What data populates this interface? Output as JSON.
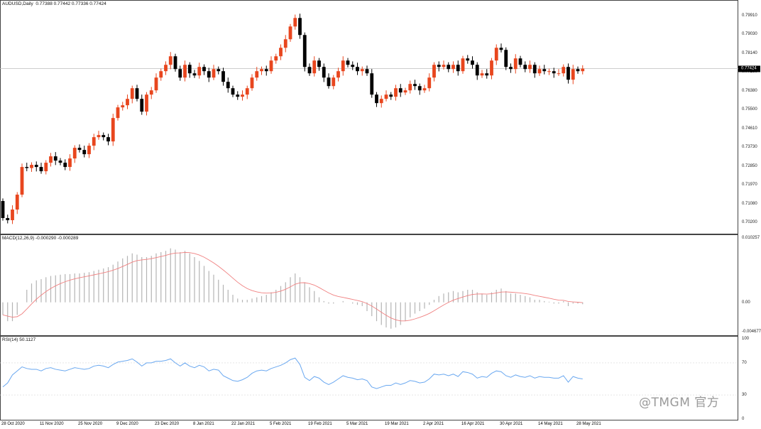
{
  "chart_header": {
    "symbol_label": "AUDUSD,Daily",
    "ohlc": "0.77388 0.77442 0.77336 0.77424"
  },
  "colors": {
    "bull": "#e8461e",
    "bear": "#000000",
    "macd_hist": "#b4b4b4",
    "macd_signal": "#f08080",
    "rsi_line": "#6aa8f0",
    "price_line": "#bcbcbc"
  },
  "price_axis": {
    "ticks": [
      "0.79910",
      "0.79030",
      "0.78140",
      "0.77260",
      "0.76380",
      "0.75500",
      "0.74610",
      "0.73730",
      "0.72850",
      "0.71970",
      "0.71080",
      "0.70200"
    ],
    "current_price": "0.77424"
  },
  "macd_panel": {
    "label": "MACD(12,26,9) -0.000290 -0.000289",
    "ticks": [
      "0.010257",
      "0.00",
      "-0.004677"
    ]
  },
  "rsi_panel": {
    "label": "RSI(14) 50.1127",
    "ticks": [
      "100",
      "70",
      "30",
      "0"
    ]
  },
  "x_axis_labels": [
    "28 Oct 2020",
    "11 Nov 2020",
    "25 Nov 2020",
    "9 Dec 2020",
    "23 Dec 2020",
    "8 Jan 2021",
    "22 Jan 2021",
    "5 Feb 2021",
    "19 Feb 2021",
    "5 Mar 2021",
    "19 Mar 2021",
    "2 Apr 2021",
    "16 Apr 2021",
    "30 Apr 2021",
    "14 May 2021",
    "28 May 2021"
  ],
  "watermark": "@TMGM 官方",
  "chart_data": {
    "type": "candlestick",
    "symbol": "AUDUSD",
    "timeframe": "Daily",
    "close": [
      0.704,
      0.703,
      0.708,
      0.715,
      0.728,
      0.7275,
      0.729,
      0.728,
      0.726,
      0.73,
      0.733,
      0.731,
      0.73,
      0.728,
      0.732,
      0.737,
      0.736,
      0.734,
      0.738,
      0.742,
      0.743,
      0.742,
      0.74,
      0.751,
      0.756,
      0.757,
      0.76,
      0.765,
      0.76,
      0.754,
      0.762,
      0.764,
      0.77,
      0.773,
      0.776,
      0.78,
      0.774,
      0.77,
      0.776,
      0.772,
      0.771,
      0.775,
      0.773,
      0.77,
      0.774,
      0.773,
      0.768,
      0.765,
      0.762,
      0.761,
      0.762,
      0.765,
      0.77,
      0.773,
      0.774,
      0.773,
      0.778,
      0.78,
      0.784,
      0.788,
      0.794,
      0.798,
      0.79,
      0.775,
      0.772,
      0.778,
      0.775,
      0.77,
      0.766,
      0.77,
      0.773,
      0.778,
      0.776,
      0.775,
      0.773,
      0.774,
      0.772,
      0.762,
      0.758,
      0.76,
      0.762,
      0.761,
      0.765,
      0.763,
      0.764,
      0.767,
      0.766,
      0.764,
      0.765,
      0.77,
      0.776,
      0.775,
      0.776,
      0.774,
      0.776,
      0.773,
      0.779,
      0.778,
      0.776,
      0.771,
      0.772,
      0.771,
      0.778,
      0.784,
      0.783,
      0.775,
      0.774,
      0.779,
      0.776,
      0.774,
      0.776,
      0.772,
      0.774,
      0.773,
      0.773,
      0.772,
      0.772,
      0.775,
      0.769,
      0.774,
      0.773,
      0.7742
    ],
    "open_first": 0.712,
    "macd_hist": [
      -0.002,
      -0.003,
      -0.003,
      -0.002,
      0.0,
      0.002,
      0.003,
      0.0035,
      0.0037,
      0.004,
      0.0042,
      0.0043,
      0.0044,
      0.0045,
      0.0045,
      0.0046,
      0.0046,
      0.0047,
      0.0048,
      0.005,
      0.0052,
      0.0054,
      0.0056,
      0.006,
      0.0065,
      0.007,
      0.0074,
      0.0078,
      0.0076,
      0.0072,
      0.0072,
      0.0074,
      0.0078,
      0.008,
      0.0082,
      0.0086,
      0.0084,
      0.008,
      0.0082,
      0.0078,
      0.0072,
      0.0066,
      0.0058,
      0.005,
      0.0044,
      0.0036,
      0.0028,
      0.002,
      0.0012,
      0.0006,
      0.0004,
      0.0004,
      0.0006,
      0.0008,
      0.001,
      0.0012,
      0.0016,
      0.002,
      0.0026,
      0.0032,
      0.004,
      0.0046,
      0.004,
      0.0032,
      0.0024,
      0.0018,
      0.0008,
      0.0002,
      -0.0002,
      -0.0002,
      0.0,
      0.0002,
      0.0,
      -0.0002,
      -0.0004,
      -0.0006,
      -0.0014,
      -0.0022,
      -0.003,
      -0.0036,
      -0.004,
      -0.0042,
      -0.004,
      -0.0036,
      -0.003,
      -0.0024,
      -0.0018,
      -0.0014,
      -0.001,
      -0.0004,
      0.0004,
      0.001,
      0.0014,
      0.0016,
      0.0018,
      0.0016,
      0.0018,
      0.002,
      0.002,
      0.0016,
      0.0014,
      0.0012,
      0.0016,
      0.002,
      0.0022,
      0.0018,
      0.0014,
      0.0014,
      0.0012,
      0.001,
      0.0008,
      0.0004,
      0.0004,
      0.0002,
      0.0001,
      -0.0002,
      -0.0002,
      0.0002,
      -0.0006,
      -0.0002,
      -0.0002,
      -0.0003
    ],
    "rsi": [
      40,
      45,
      55,
      60,
      65,
      63,
      62,
      62,
      60,
      63,
      64,
      62,
      61,
      60,
      62,
      64,
      63,
      62,
      63,
      66,
      67,
      66,
      64,
      68,
      71,
      72,
      73,
      75,
      71,
      66,
      70,
      70,
      72,
      72,
      73,
      75,
      70,
      66,
      70,
      66,
      64,
      67,
      65,
      60,
      62,
      61,
      54,
      51,
      48,
      47,
      49,
      52,
      57,
      60,
      61,
      60,
      63,
      65,
      67,
      70,
      74,
      76,
      68,
      52,
      48,
      53,
      51,
      46,
      43,
      46,
      50,
      54,
      52,
      51,
      49,
      50,
      48,
      40,
      38,
      40,
      42,
      42,
      45,
      43,
      45,
      48,
      47,
      45,
      46,
      50,
      56,
      55,
      56,
      54,
      56,
      53,
      59,
      58,
      56,
      51,
      53,
      52,
      57,
      60,
      59,
      54,
      52,
      55,
      53,
      52,
      54,
      51,
      53,
      52,
      52,
      51,
      51,
      54,
      46,
      53,
      51,
      50
    ]
  }
}
